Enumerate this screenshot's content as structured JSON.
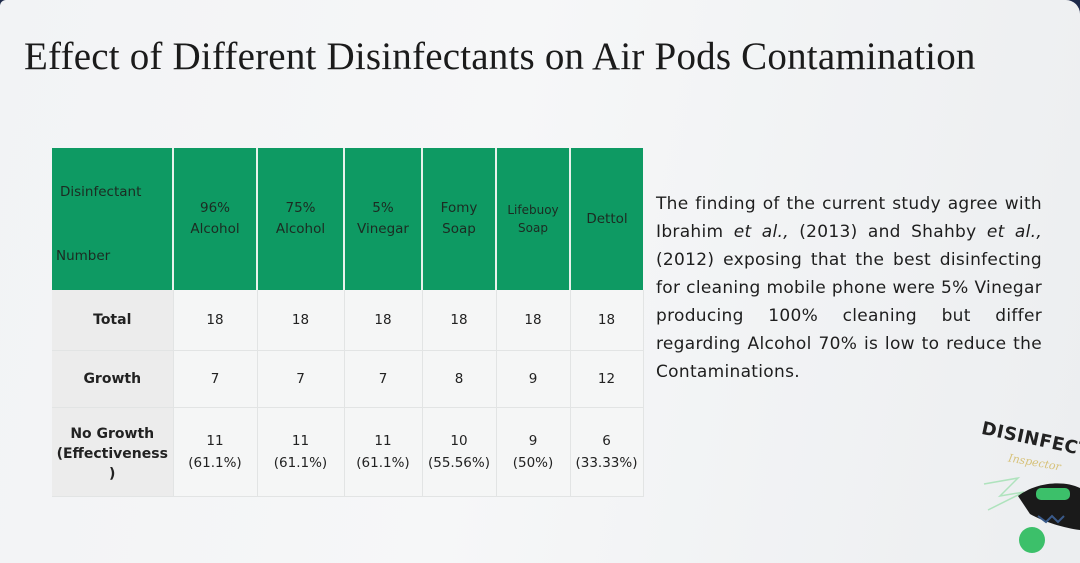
{
  "title": "Effect of Different Disinfectants on Air Pods Contamination",
  "table": {
    "corner_top": "Disinfectant",
    "corner_bottom": "Number",
    "columns": [
      {
        "line1": "96%",
        "line2": "Alcohol"
      },
      {
        "line1": "75%",
        "line2": "Alcohol"
      },
      {
        "line1": "5%",
        "line2": "Vinegar"
      },
      {
        "line1": "Fomy",
        "line2": "Soap"
      },
      {
        "line1": "Lifebuoy",
        "line2": "Soap"
      },
      {
        "line1": "Dettol",
        "line2": ""
      }
    ],
    "rows": [
      {
        "label": "Total",
        "values": [
          {
            "a": "18",
            "b": ""
          },
          {
            "a": "18",
            "b": ""
          },
          {
            "a": "18",
            "b": ""
          },
          {
            "a": "18",
            "b": ""
          },
          {
            "a": "18",
            "b": ""
          },
          {
            "a": "18",
            "b": ""
          }
        ]
      },
      {
        "label": "Growth",
        "values": [
          {
            "a": "7",
            "b": ""
          },
          {
            "a": "7",
            "b": ""
          },
          {
            "a": "7",
            "b": ""
          },
          {
            "a": "8",
            "b": ""
          },
          {
            "a": "9",
            "b": ""
          },
          {
            "a": "12",
            "b": ""
          }
        ]
      },
      {
        "label_lines": [
          "No Growth",
          "(Effectiveness",
          ")"
        ],
        "values": [
          {
            "a": "11",
            "b": "(61.1%)"
          },
          {
            "a": "11",
            "b": "(61.1%)"
          },
          {
            "a": "11",
            "b": "(61.1%)"
          },
          {
            "a": "10",
            "b": "(55.56%)"
          },
          {
            "a": "9",
            "b": "(50%)"
          },
          {
            "a": "6",
            "b": "(33.33%)"
          }
        ]
      }
    ]
  },
  "side_text": {
    "p1": "The finding of the current study agree with Ibrahim ",
    "etal1": "et al.,",
    "p2": " (2013) and Shahby ",
    "etal2": "et al.,",
    "p3": " (2012) exposing that the best disinfecting for cleaning mobile phone were 5% Vinegar producing 100% cleaning but differ regarding Alcohol 70% is low to reduce the Contaminations."
  },
  "logo": {
    "word": "DISINFECT",
    "script": "Inspector"
  },
  "colors": {
    "header_green": "#0e9a63",
    "logo_green": "#3cc06a"
  }
}
